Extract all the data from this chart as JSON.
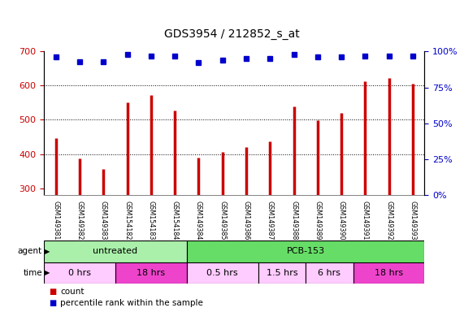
{
  "title": "GDS3954 / 212852_s_at",
  "samples": [
    "GSM149381",
    "GSM149382",
    "GSM149383",
    "GSM154182",
    "GSM154183",
    "GSM154184",
    "GSM149384",
    "GSM149385",
    "GSM149386",
    "GSM149387",
    "GSM149388",
    "GSM149389",
    "GSM149390",
    "GSM149391",
    "GSM149392",
    "GSM149393"
  ],
  "counts": [
    447,
    388,
    357,
    551,
    573,
    527,
    390,
    405,
    420,
    438,
    538,
    499,
    520,
    612,
    622,
    606
  ],
  "percentile_ranks": [
    96,
    93,
    93,
    98,
    97,
    97,
    92,
    94,
    95,
    95,
    98,
    96,
    96,
    97,
    97,
    97
  ],
  "ylim_left": [
    280,
    700
  ],
  "ylim_right": [
    0,
    100
  ],
  "yticks_left": [
    300,
    400,
    500,
    600,
    700
  ],
  "yticks_right": [
    0,
    25,
    50,
    75,
    100
  ],
  "bar_color": "#cc0000",
  "dot_color": "#0000cc",
  "grid_color": "#000000",
  "agent_row": [
    {
      "label": "untreated",
      "start": 0,
      "end": 6,
      "color": "#aaf0aa"
    },
    {
      "label": "PCB-153",
      "start": 6,
      "end": 16,
      "color": "#66dd66"
    }
  ],
  "time_row": [
    {
      "label": "0 hrs",
      "start": 0,
      "end": 3,
      "color": "#ffccff"
    },
    {
      "label": "18 hrs",
      "start": 3,
      "end": 6,
      "color": "#ee44cc"
    },
    {
      "label": "0.5 hrs",
      "start": 6,
      "end": 9,
      "color": "#ffccff"
    },
    {
      "label": "1.5 hrs",
      "start": 9,
      "end": 11,
      "color": "#ffccff"
    },
    {
      "label": "6 hrs",
      "start": 11,
      "end": 13,
      "color": "#ffccff"
    },
    {
      "label": "18 hrs",
      "start": 13,
      "end": 16,
      "color": "#ee44cc"
    }
  ],
  "legend_count_color": "#cc0000",
  "legend_dot_color": "#0000cc",
  "left_tick_color": "#cc0000",
  "right_tick_color": "#0000cc",
  "background_color": "#ffffff",
  "plot_bg_color": "#ffffff",
  "label_bg_color": "#cccccc",
  "label_border_color": "#888888"
}
